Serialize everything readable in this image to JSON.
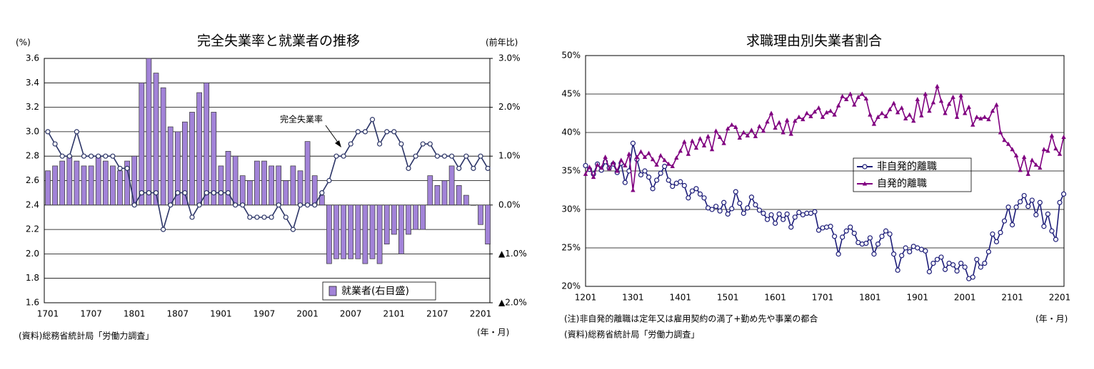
{
  "chart_data": [
    {
      "type": "bar",
      "title": "完全失業率と就業者の推移",
      "y_unit": "(%)",
      "y2_unit": "(前年比)",
      "x_unit": "(年・月)",
      "source": "(資料)総務省統計局「労働力調査」",
      "categories": [
        "1701",
        null,
        null,
        null,
        null,
        null,
        "1707",
        null,
        null,
        null,
        null,
        null,
        "1801",
        null,
        null,
        null,
        null,
        null,
        "1807",
        null,
        null,
        null,
        null,
        null,
        "1901",
        null,
        null,
        null,
        null,
        null,
        "1907",
        null,
        null,
        null,
        null,
        null,
        "2001",
        null,
        null,
        null,
        null,
        null,
        "2007",
        null,
        null,
        null,
        null,
        null,
        "2101",
        null,
        null,
        null,
        null,
        null,
        "2107",
        null,
        null,
        null,
        null,
        null,
        "2201",
        null
      ],
      "ylim": [
        1.6,
        3.6
      ],
      "yticks": [
        1.6,
        1.8,
        {
          "value": 2,
          "label": "2.0"
        },
        2.2,
        2.4,
        2.6,
        2.8,
        {
          "value": 3,
          "label": "3.0"
        },
        3.2,
        3.4,
        3.6
      ],
      "y2lim": [
        -2,
        3
      ],
      "y2ticks": [
        {
          "value": 3,
          "label": "3.0%"
        },
        {
          "value": 2,
          "label": "2.0%"
        },
        {
          "value": 1,
          "label": "1.0%"
        },
        {
          "value": 0,
          "label": "0.0%"
        },
        {
          "value": -1,
          "label": "▲1.0%"
        },
        {
          "value": -2,
          "label": "▲2.0%"
        }
      ],
      "grid": true,
      "series": [
        {
          "name": "就業者(右目盛)",
          "type": "bar",
          "axis": "y2",
          "color": "#a283d8",
          "values": [
            0.7,
            0.8,
            0.9,
            1.0,
            0.9,
            0.8,
            0.8,
            1.0,
            0.9,
            0.8,
            0.7,
            0.9,
            1.0,
            2.5,
            3.0,
            2.7,
            2.4,
            1.6,
            1.5,
            1.7,
            1.9,
            2.3,
            2.5,
            1.9,
            0.8,
            1.1,
            1.0,
            0.6,
            0.5,
            0.9,
            0.9,
            0.8,
            0.8,
            0.5,
            0.8,
            0.7,
            1.3,
            0.6,
            0.2,
            -1.2,
            -1.1,
            -1.1,
            -1.1,
            -1.1,
            -1.2,
            -1.1,
            -1.2,
            -0.8,
            -0.6,
            -1.0,
            -0.6,
            -0.5,
            -0.5,
            0.6,
            0.4,
            0.5,
            0.8,
            0.4,
            0.2,
            0.0,
            -0.4,
            -0.8
          ]
        },
        {
          "name": "完全失業率",
          "type": "line",
          "marker": "circle",
          "color": "#2b3466",
          "values": [
            3.0,
            2.9,
            2.8,
            2.8,
            3.0,
            2.8,
            2.8,
            2.8,
            2.8,
            2.8,
            2.7,
            2.7,
            2.4,
            2.5,
            2.5,
            2.5,
            2.2,
            2.4,
            2.5,
            2.5,
            2.3,
            2.4,
            2.5,
            2.5,
            2.5,
            2.5,
            2.4,
            2.4,
            2.3,
            2.3,
            2.3,
            2.3,
            2.4,
            2.3,
            2.2,
            2.4,
            2.4,
            2.4,
            2.5,
            2.6,
            2.8,
            2.8,
            2.9,
            3.0,
            3.0,
            3.1,
            2.9,
            3.0,
            3.0,
            2.9,
            2.7,
            2.8,
            2.9,
            2.9,
            2.8,
            2.8,
            2.8,
            2.7,
            2.8,
            2.7,
            2.8,
            2.7
          ]
        }
      ]
    },
    {
      "type": "line",
      "title": "求職理由別失業者割合",
      "note": "(注)非自発的離職は定年又は雇用契約の満了+勤め先や事業の都合",
      "x_unit": "(年・月)",
      "source": "(資料)総務省統計局「労働力調査」",
      "categories": [
        "1201",
        null,
        null,
        null,
        null,
        null,
        null,
        null,
        null,
        null,
        null,
        null,
        "1301",
        null,
        null,
        null,
        null,
        null,
        null,
        null,
        null,
        null,
        null,
        null,
        "1401",
        null,
        null,
        null,
        null,
        null,
        null,
        null,
        null,
        null,
        null,
        null,
        "1501",
        null,
        null,
        null,
        null,
        null,
        null,
        null,
        null,
        null,
        null,
        null,
        "1601",
        null,
        null,
        null,
        null,
        null,
        null,
        null,
        null,
        null,
        null,
        null,
        "1701",
        null,
        null,
        null,
        null,
        null,
        null,
        null,
        null,
        null,
        null,
        null,
        "1801",
        null,
        null,
        null,
        null,
        null,
        null,
        null,
        null,
        null,
        null,
        null,
        "1901",
        null,
        null,
        null,
        null,
        null,
        null,
        null,
        null,
        null,
        null,
        null,
        "2001",
        null,
        null,
        null,
        null,
        null,
        null,
        null,
        null,
        null,
        null,
        null,
        "2101",
        null,
        null,
        null,
        null,
        null,
        null,
        null,
        null,
        null,
        null,
        null,
        "2201",
        null
      ],
      "ylim": [
        20,
        50
      ],
      "yticks": [
        {
          "value": 20,
          "label": "20%"
        },
        {
          "value": 25,
          "label": "25%"
        },
        {
          "value": 30,
          "label": "30%"
        },
        {
          "value": 35,
          "label": "35%"
        },
        {
          "value": 40,
          "label": "40%"
        },
        {
          "value": 45,
          "label": "45%"
        },
        {
          "value": 50,
          "label": "50%"
        }
      ],
      "grid": true,
      "series": [
        {
          "name": "非自発的離職",
          "marker": "circle",
          "color": "#1c1c78",
          "values": [
            35.7,
            35.2,
            34.6,
            35.9,
            35.1,
            36.2,
            35.4,
            35.9,
            34.8,
            36.0,
            33.5,
            35.0,
            38.6,
            36.5,
            34.5,
            35.0,
            34.2,
            32.7,
            33.8,
            34.7,
            35.6,
            33.8,
            33.0,
            33.4,
            33.6,
            33.1,
            31.5,
            32.4,
            32.7,
            32.0,
            31.5,
            30.2,
            30.0,
            30.4,
            29.8,
            30.9,
            29.4,
            30.1,
            32.3,
            30.8,
            29.5,
            30.2,
            31.6,
            30.6,
            29.9,
            29.5,
            28.7,
            29.3,
            28.2,
            29.4,
            28.7,
            29.4,
            27.7,
            29.0,
            29.6,
            29.3,
            29.5,
            29.5,
            29.7,
            27.3,
            27.6,
            27.7,
            27.8,
            26.5,
            24.2,
            26.4,
            27.2,
            27.7,
            26.9,
            25.7,
            25.5,
            25.6,
            26.3,
            24.2,
            25.5,
            26.5,
            27.2,
            26.8,
            24.2,
            22.1,
            24.0,
            25.0,
            24.5,
            25.2,
            25.0,
            24.8,
            24.6,
            21.9,
            23.0,
            23.5,
            23.8,
            22.2,
            23.0,
            22.8,
            22.0,
            23.0,
            22.5,
            21.0,
            21.2,
            23.5,
            22.5,
            23.0,
            24.5,
            26.8,
            25.8,
            27.0,
            28.5,
            30.3,
            28.0,
            30.3,
            31.0,
            31.8,
            30.4,
            31.2,
            29.3,
            30.9,
            27.8,
            29.4,
            27.2,
            26.1,
            30.9,
            32.0
          ]
        },
        {
          "name": "自発的離職",
          "marker": "triangle",
          "color": "#800080",
          "values": [
            34.6,
            35.5,
            34.2,
            35.8,
            35.4,
            36.8,
            35.3,
            36.1,
            35.0,
            36.4,
            35.7,
            37.2,
            32.5,
            36.8,
            37.5,
            36.8,
            37.3,
            36.5,
            35.8,
            37.0,
            36.4,
            35.9,
            35.6,
            36.7,
            37.6,
            38.8,
            37.2,
            38.9,
            38.0,
            39.2,
            38.3,
            39.5,
            37.8,
            40.2,
            39.4,
            38.6,
            40.5,
            41.0,
            40.7,
            39.3,
            40.0,
            39.6,
            40.3,
            39.5,
            40.8,
            40.2,
            41.4,
            42.5,
            40.6,
            41.3,
            40.0,
            41.6,
            39.8,
            41.5,
            42.0,
            41.7,
            42.5,
            42.1,
            42.7,
            43.2,
            42.0,
            42.6,
            42.8,
            42.3,
            43.5,
            44.7,
            44.3,
            45.0,
            43.6,
            44.6,
            45.0,
            44.4,
            42.3,
            41.1,
            42.0,
            42.5,
            42.1,
            43.0,
            43.8,
            42.6,
            43.2,
            41.8,
            42.3,
            41.5,
            44.3,
            42.2,
            45.0,
            42.8,
            43.9,
            46.0,
            44.1,
            42.5,
            43.7,
            44.6,
            42.0,
            44.8,
            42.5,
            43.3,
            41.0,
            42.0,
            41.8,
            42.0,
            41.7,
            42.8,
            43.6,
            40.0,
            39.0,
            38.5,
            37.8,
            37.0,
            35.1,
            36.8,
            34.6,
            36.4,
            35.8,
            35.4,
            37.8,
            37.6,
            39.6,
            37.9,
            37.2,
            39.4
          ]
        }
      ]
    }
  ]
}
